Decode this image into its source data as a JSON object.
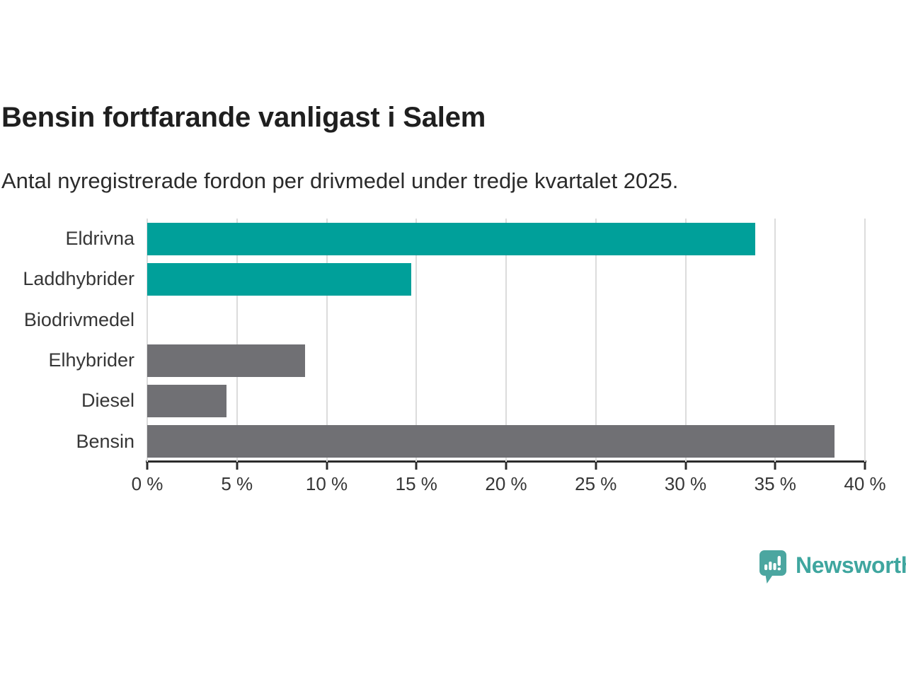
{
  "header": {
    "title": "Bensin fortfarande vanligast i Salem",
    "subtitle": "Antal nyregistrerade fordon per drivmedel under tredje kvartalet 2025."
  },
  "colors": {
    "teal": "#00a09a",
    "gray": "#707074",
    "grid": "#dcdcdc",
    "axis": "#2b2b2b",
    "title_text": "#1f1f1f",
    "label_text": "#363636",
    "brand_teal": "#3fa69f",
    "logo_bubble": "#4ba6a0"
  },
  "chart_data": {
    "type": "bar",
    "orientation": "horizontal",
    "title": "Bensin fortfarande vanligast i Salem",
    "subtitle": "Antal nyregistrerade fordon per drivmedel under tredje kvartalet 2025.",
    "categories": [
      "Eldrivna",
      "Laddhybrider",
      "Biodrivmedel",
      "Elhybrider",
      "Diesel",
      "Bensin"
    ],
    "values": [
      33.9,
      14.7,
      0,
      8.8,
      4.4,
      38.3
    ],
    "bar_colors": [
      "#00a09a",
      "#00a09a",
      "#00a09a",
      "#707074",
      "#707074",
      "#707074"
    ],
    "xlim": [
      0,
      40
    ],
    "x_tick_values": [
      0,
      5,
      10,
      15,
      20,
      25,
      30,
      35,
      40
    ],
    "x_tick_labels": [
      "0 %",
      "5 %",
      "10 %",
      "15 %",
      "20 %",
      "25 %",
      "30 %",
      "35 %",
      "40 %"
    ],
    "grid": true,
    "legend": false,
    "xlabel": "",
    "ylabel": ""
  },
  "footer": {
    "brand": "Newsworthy",
    "logo_icon": "bar-chart-speech-bubble-icon"
  }
}
